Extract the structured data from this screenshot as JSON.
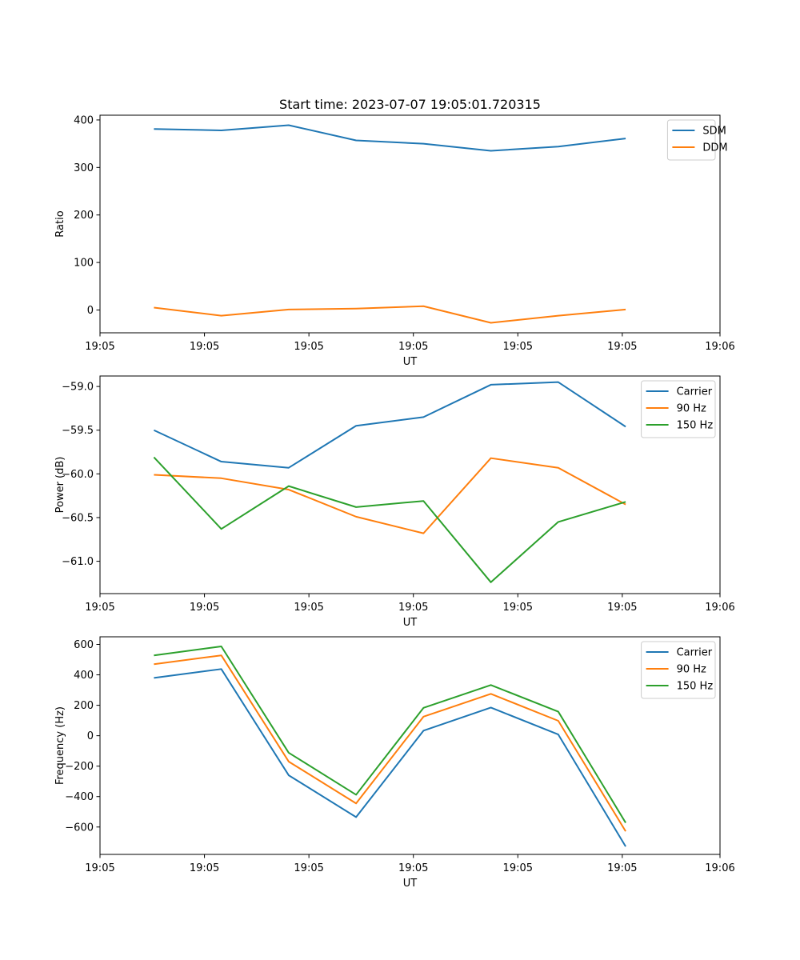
{
  "chart_data": [
    {
      "type": "line",
      "title": "Start time: 2023-07-07 19:05:01.720315",
      "xlabel": "UT",
      "ylabel": "Ratio",
      "x_tick_labels": [
        "19:05",
        "19:05",
        "19:05",
        "19:05",
        "19:05",
        "19:05",
        "19:05"
      ],
      "x_last_tick_label": "19:06",
      "x": [
        1,
        2,
        3,
        4,
        5,
        6,
        7,
        8
      ],
      "xlim": [
        0.2,
        9.4
      ],
      "x_ticks": [
        0.2,
        1.75,
        3.3,
        4.85,
        6.4,
        7.95,
        9.4
      ],
      "yticks": [
        0,
        100,
        200,
        300,
        400
      ],
      "ytick_labels": [
        "0",
        "100",
        "200",
        "300",
        "400"
      ],
      "ylim": [
        -48,
        410
      ],
      "legend": "top-right",
      "series": [
        {
          "name": "SDM",
          "color": "#1f77b4",
          "values": [
            381,
            378,
            389,
            357,
            350,
            335,
            344,
            361
          ]
        },
        {
          "name": "DDM",
          "color": "#ff7f0e",
          "values": [
            5,
            -12,
            1,
            3,
            8,
            -27,
            -12,
            1
          ]
        }
      ]
    },
    {
      "type": "line",
      "title": "",
      "xlabel": "UT",
      "ylabel": "Power (dB)",
      "x_tick_labels": [
        "19:05",
        "19:05",
        "19:05",
        "19:05",
        "19:05",
        "19:05",
        "19:05"
      ],
      "x_last_tick_label": "19:06",
      "x": [
        1,
        2,
        3,
        4,
        5,
        6,
        7,
        8
      ],
      "xlim": [
        0.2,
        9.4
      ],
      "x_ticks": [
        0.2,
        1.75,
        3.3,
        4.85,
        6.4,
        7.95,
        9.4
      ],
      "yticks": [
        -59.0,
        -59.5,
        -60.0,
        -60.5,
        -61.0
      ],
      "ytick_labels": [
        "−59.0",
        "−59.5",
        "−60.0",
        "−60.5",
        "−61.0"
      ],
      "ylim": [
        -61.37,
        -58.88
      ],
      "legend": "top-right",
      "series": [
        {
          "name": "Carrier",
          "color": "#1f77b4",
          "values": [
            -59.5,
            -59.86,
            -59.93,
            -59.45,
            -59.35,
            -58.98,
            -58.95,
            -59.46
          ]
        },
        {
          "name": "90 Hz",
          "color": "#ff7f0e",
          "values": [
            -60.01,
            -60.05,
            -60.18,
            -60.49,
            -60.68,
            -59.82,
            -59.93,
            -60.35
          ]
        },
        {
          "name": "150 Hz",
          "color": "#2ca02c",
          "values": [
            -59.81,
            -60.63,
            -60.14,
            -60.38,
            -60.31,
            -61.24,
            -60.55,
            -60.32
          ]
        }
      ]
    },
    {
      "type": "line",
      "title": "",
      "xlabel": "UT",
      "ylabel": "Frequency (Hz)",
      "x_tick_labels": [
        "19:05",
        "19:05",
        "19:05",
        "19:05",
        "19:05",
        "19:05",
        "19:05"
      ],
      "x_last_tick_label": "19:06",
      "x": [
        1,
        2,
        3,
        4,
        5,
        6,
        7,
        8
      ],
      "xlim": [
        0.2,
        9.4
      ],
      "x_ticks": [
        0.2,
        1.75,
        3.3,
        4.85,
        6.4,
        7.95,
        9.4
      ],
      "yticks": [
        600,
        400,
        200,
        0,
        -200,
        -400,
        -600
      ],
      "ytick_labels": [
        "600",
        "400",
        "200",
        "0",
        "−200",
        "−400",
        "−600"
      ],
      "ylim": [
        -780,
        650
      ],
      "legend": "top-right",
      "series": [
        {
          "name": "Carrier",
          "color": "#1f77b4",
          "values": [
            380,
            438,
            -260,
            -535,
            33,
            185,
            8,
            -728
          ]
        },
        {
          "name": "90 Hz",
          "color": "#ff7f0e",
          "values": [
            470,
            528,
            -170,
            -445,
            125,
            275,
            98,
            -628
          ]
        },
        {
          "name": "150 Hz",
          "color": "#2ca02c",
          "values": [
            528,
            587,
            -112,
            -388,
            183,
            333,
            158,
            -572
          ]
        }
      ]
    }
  ]
}
